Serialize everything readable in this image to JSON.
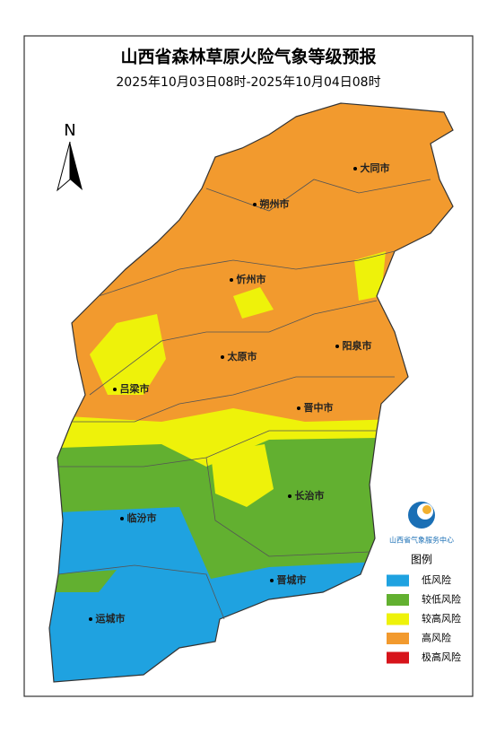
{
  "header": {
    "title": "山西省森林草原火险气象等级预报",
    "subtitle": "2025年10月03日08时-2025年10月04日08时"
  },
  "north": "N",
  "cities": [
    "大同市",
    "朔州市",
    "忻州市",
    "阳泉市",
    "太原市",
    "吕梁市",
    "晋中市",
    "长治市",
    "临汾市",
    "晋城市",
    "运城市"
  ],
  "logo": "山西省气象服务中心",
  "legend": {
    "title": "图例",
    "items": [
      {
        "name": "低风险",
        "color": "#1fa2e0"
      },
      {
        "name": "较低风险",
        "color": "#62b030"
      },
      {
        "name": "较高风险",
        "color": "#eef20a"
      },
      {
        "name": "高风险",
        "color": "#f29a2e"
      },
      {
        "name": "极高风险",
        "color": "#d7141b"
      }
    ]
  }
}
